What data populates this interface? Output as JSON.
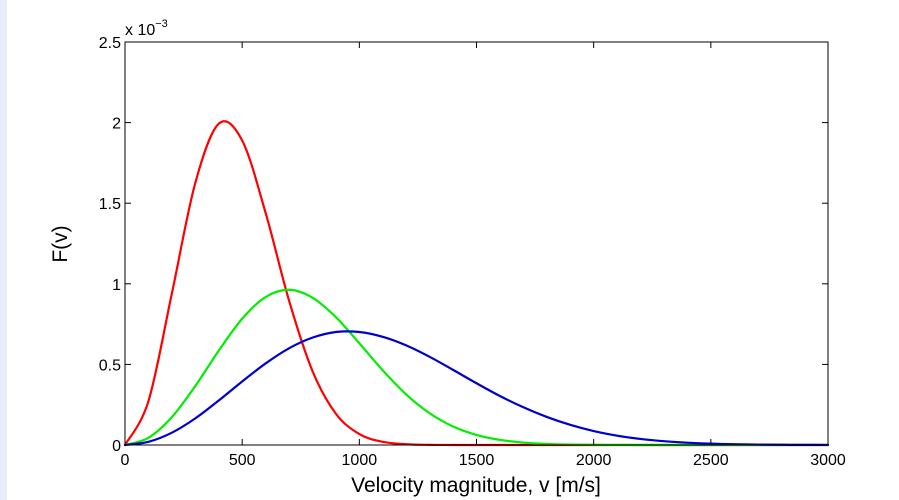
{
  "chart_data": {
    "type": "line",
    "xlabel": "Velocity magnitude, v [m/s]",
    "ylabel": "F(v)",
    "xlim": [
      0,
      3000
    ],
    "ylim": [
      0,
      0.0025
    ],
    "y_exponent_label": "x 10",
    "y_exponent_power": "−3",
    "x_ticks": [
      0,
      500,
      1000,
      1500,
      2000,
      2500,
      3000
    ],
    "x_tick_labels": [
      "0",
      "500",
      "1000",
      "1500",
      "2000",
      "2500",
      "3000"
    ],
    "y_ticks": [
      0,
      0.0005,
      0.001,
      0.0015,
      0.002,
      0.0025
    ],
    "y_tick_labels": [
      "0",
      "0.5",
      "1",
      "1.5",
      "2",
      "2.5"
    ],
    "grid": false,
    "legend": "none",
    "x": [
      0,
      100,
      200,
      300,
      400,
      500,
      600,
      700,
      800,
      900,
      1000,
      1100,
      1200,
      1300,
      1400,
      1500,
      1600,
      1700,
      1800,
      1900,
      2000,
      2100,
      2200,
      2300,
      2400,
      2500,
      2600,
      2700,
      2800,
      2900,
      3000
    ],
    "series": [
      {
        "color": "#ff0000",
        "values": [
          0,
          0.000272,
          0.00094,
          0.001626,
          0.001993,
          0.001889,
          0.00144,
          0.000896,
          0.000459,
          0.000194,
          6.79e-05,
          1.96e-05,
          4.7e-06,
          9e-07,
          2e-07,
          0,
          0,
          0,
          0,
          0,
          0,
          0,
          0,
          0,
          0,
          0,
          0,
          0,
          0,
          0,
          0
        ]
      },
      {
        "color": "#00ee00",
        "values": [
          0,
          4.47e-05,
          0.000173,
          0.000366,
          0.000585,
          0.000783,
          0.000918,
          0.000963,
          0.000914,
          0.000793,
          0.000631,
          0.000463,
          0.000314,
          0.000197,
          0.000115,
          6.27e-05,
          3.18e-05,
          1.51e-05,
          6.7e-06,
          2.8e-06,
          1.1e-06,
          4e-07,
          1e-07,
          0,
          0,
          0,
          0,
          0,
          0,
          0,
          0
        ]
      },
      {
        "color": "#0000cc",
        "values": [
          0,
          1.95e-05,
          7.63e-05,
          0.000165,
          0.000276,
          0.000394,
          0.000506,
          0.0006,
          0.000666,
          0.000701,
          0.000701,
          0.000671,
          0.000618,
          0.000547,
          0.000466,
          0.000383,
          0.000304,
          0.000234,
          0.000174,
          0.000125,
          8.64e-05,
          5.78e-05,
          3.75e-05,
          2.35e-05,
          1.43e-05,
          8.4e-06,
          4.8e-06,
          2.6e-06,
          1.4e-06,
          7e-07,
          4e-07
        ]
      }
    ]
  }
}
